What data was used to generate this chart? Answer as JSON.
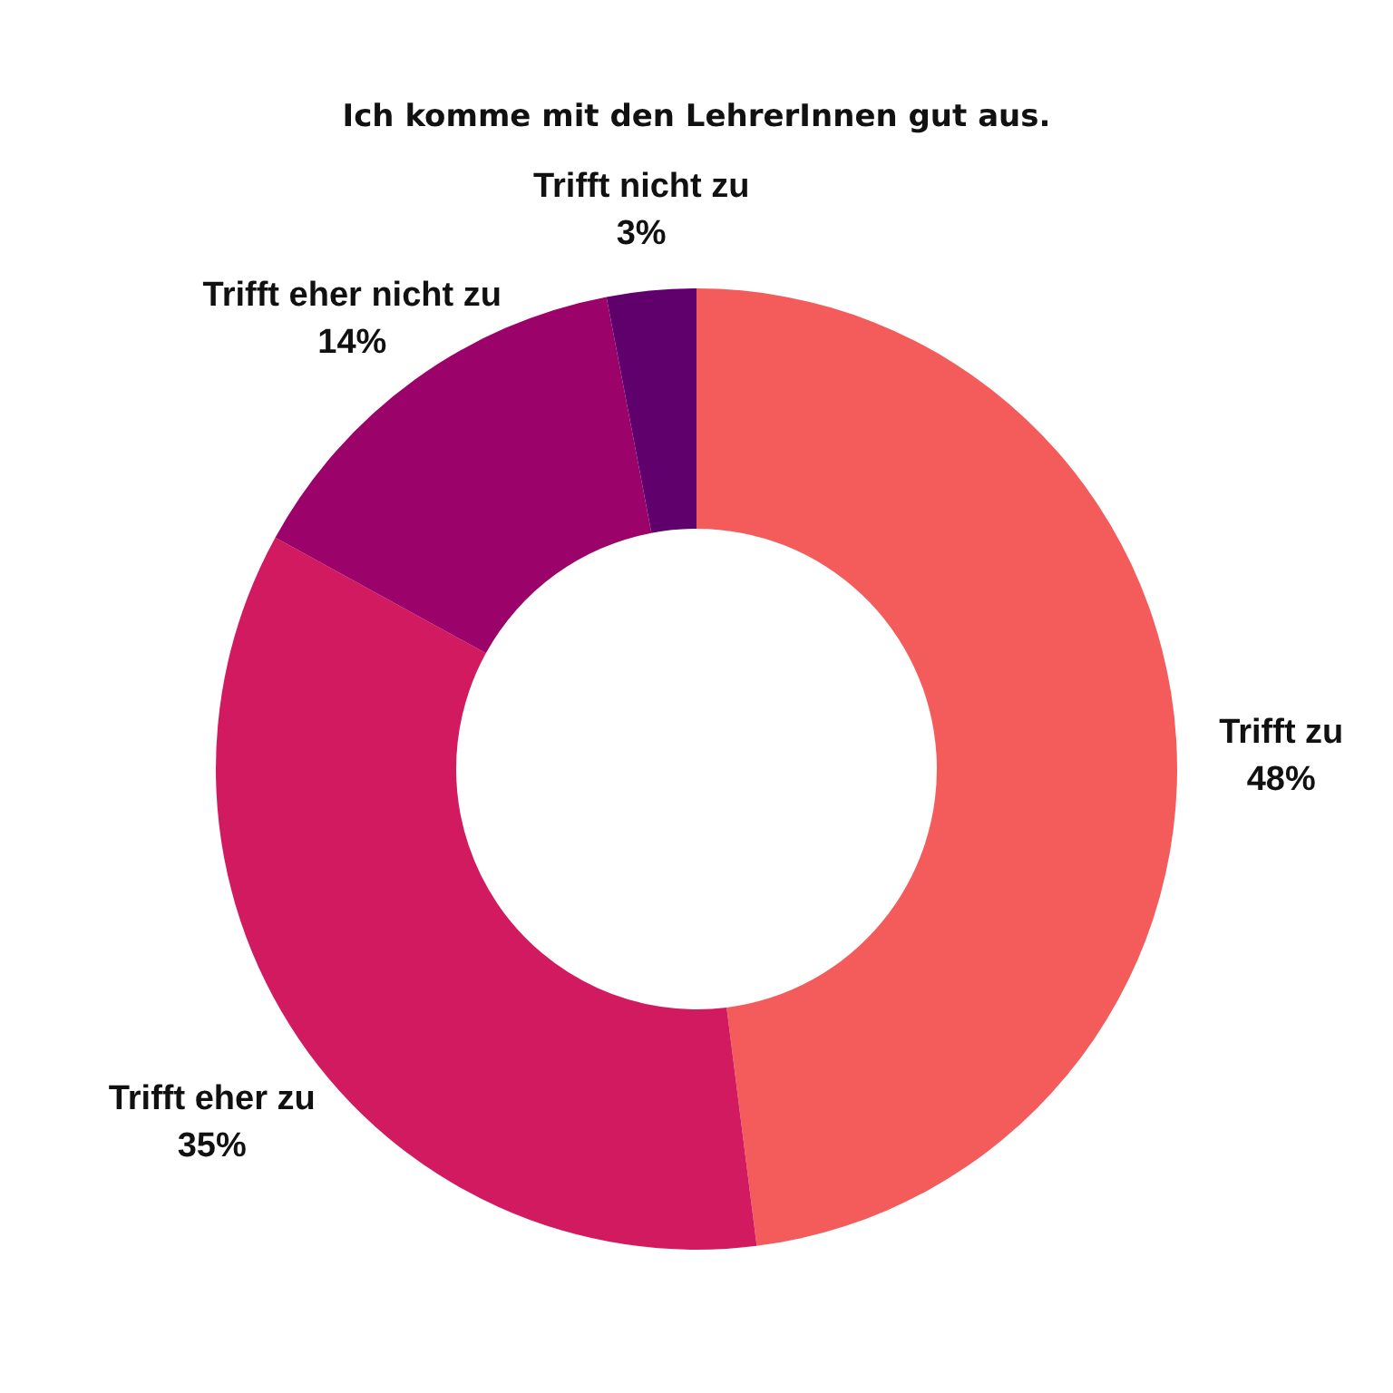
{
  "chart_data": {
    "type": "donut",
    "title": "Ich komme mit den LehrerInnen gut aus.",
    "categories": [
      "Trifft zu",
      "Trifft eher zu",
      "Trifft eher nicht zu",
      "Trifft nicht zu"
    ],
    "values": [
      48,
      35,
      14,
      3
    ],
    "colors": [
      "#f45b5b",
      "#d11a60",
      "#9c036a",
      "#5f006d"
    ],
    "value_labels": [
      "48%",
      "35%",
      "14%",
      "3%"
    ],
    "legend": false
  }
}
